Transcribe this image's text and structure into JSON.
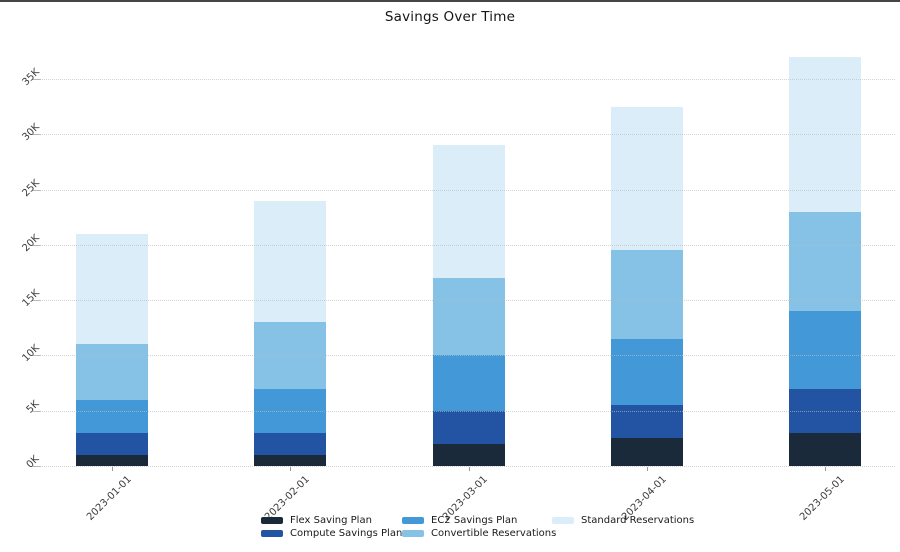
{
  "window": {
    "title": "Savings Over Time"
  },
  "chart_data": {
    "type": "bar",
    "stacked": true,
    "title": "Savings Over Time",
    "categories": [
      "2023-01-01",
      "2023-02-01",
      "2023-03-01",
      "2023-04-01",
      "2023-05-01"
    ],
    "series": [
      {
        "name": "Flex Saving Plan",
        "color": "#1B2A3A",
        "values": [
          1000,
          1000,
          2000,
          2500,
          3000
        ]
      },
      {
        "name": "Compute Savings Plan",
        "color": "#2254A3",
        "values": [
          2000,
          2000,
          3000,
          3000,
          4000
        ]
      },
      {
        "name": "EC2 Savings Plan",
        "color": "#4399D8",
        "values": [
          3000,
          4000,
          5000,
          6000,
          7000
        ]
      },
      {
        "name": "Convertible Reservations",
        "color": "#86C2E5",
        "values": [
          5000,
          6000,
          7000,
          8000,
          9000
        ]
      },
      {
        "name": "Standard Reservations",
        "color": "#DCEDFA",
        "values": [
          10000,
          11000,
          12000,
          13000,
          14000
        ]
      }
    ],
    "totals": [
      21000,
      24000,
      29000,
      32500,
      37000
    ],
    "xlabel": "",
    "ylabel": "",
    "y_ticks": [
      0,
      5000,
      10000,
      15000,
      20000,
      25000,
      30000,
      35000
    ],
    "y_tick_labels": [
      "0K",
      "5K",
      "10K",
      "15K",
      "20K",
      "25K",
      "30K",
      "35K"
    ],
    "ylim": [
      0,
      38700
    ],
    "grid": "horizontal-dotted",
    "legend_position": "bottom",
    "legend_columns": [
      [
        "Flex Saving Plan",
        "Compute Savings Plan"
      ],
      [
        "EC2 Savings Plan",
        "Convertible Reservations"
      ],
      [
        "Standard Reservations"
      ]
    ],
    "colors": {
      "background": "#ffffff",
      "gridline": "#dcdcdc",
      "tick_label": "#3b3b3b",
      "title_text": "#151515",
      "top_edge": "#454545"
    }
  }
}
